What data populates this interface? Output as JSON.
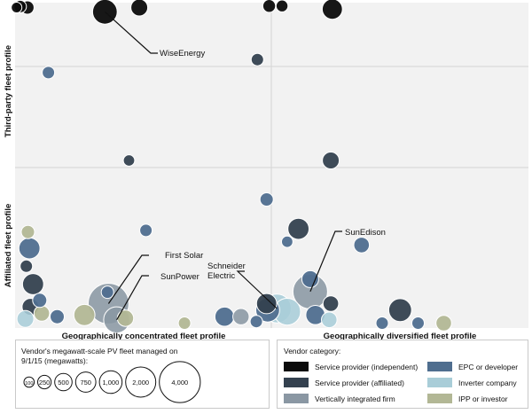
{
  "chart_data": {
    "type": "bubble",
    "xlabel_left": "Geographically concentrated fleet profile",
    "xlabel_right": "Geographically diversified fleet profile",
    "ylabel_top": "Third-party fleet profile",
    "ylabel_bottom": "Affiliated fleet profile",
    "x_range": [
      0,
      1
    ],
    "y_range": [
      0,
      1
    ],
    "grid": true,
    "categories": [
      {
        "id": "sp_ind",
        "label": "Service provider (independent)",
        "color": "#0b0b0b"
      },
      {
        "id": "epc",
        "label": "EPC or developer",
        "color": "#4f6e8f"
      },
      {
        "id": "sp_aff",
        "label": "Service provider (affiliated)",
        "color": "#34414f"
      },
      {
        "id": "inv",
        "label": "Inverter company",
        "color": "#a9cdd8"
      },
      {
        "id": "vif",
        "label": "Vertically integrated firm",
        "color": "#8a97a3"
      },
      {
        "id": "ipp",
        "label": "IPP or investor",
        "color": "#b2b795"
      }
    ],
    "bubbles": [
      {
        "x": 0.003,
        "y": 0.985,
        "mw": 120,
        "cat": "sp_ind"
      },
      {
        "x": 0.01,
        "y": 0.988,
        "mw": 200,
        "cat": "sp_ind"
      },
      {
        "x": 0.024,
        "y": 0.985,
        "mw": 250,
        "cat": "sp_ind"
      },
      {
        "x": 0.175,
        "y": 0.972,
        "mw": 1300,
        "cat": "sp_ind"
      },
      {
        "x": 0.242,
        "y": 0.985,
        "mw": 500,
        "cat": "sp_ind"
      },
      {
        "x": 0.495,
        "y": 0.99,
        "mw": 220,
        "cat": "sp_ind"
      },
      {
        "x": 0.52,
        "y": 0.99,
        "mw": 180,
        "cat": "sp_ind"
      },
      {
        "x": 0.618,
        "y": 0.98,
        "mw": 800,
        "cat": "sp_ind"
      },
      {
        "x": 0.472,
        "y": 0.825,
        "mw": 200,
        "cat": "sp_aff"
      },
      {
        "x": 0.065,
        "y": 0.785,
        "mw": 200,
        "cat": "epc"
      },
      {
        "x": 0.222,
        "y": 0.515,
        "mw": 150,
        "cat": "sp_aff"
      },
      {
        "x": 0.615,
        "y": 0.515,
        "mw": 500,
        "cat": "sp_aff"
      },
      {
        "x": 0.49,
        "y": 0.395,
        "mw": 250,
        "cat": "epc"
      },
      {
        "x": 0.552,
        "y": 0.305,
        "mw": 900,
        "cat": "sp_aff"
      },
      {
        "x": 0.53,
        "y": 0.265,
        "mw": 150,
        "cat": "epc"
      },
      {
        "x": 0.255,
        "y": 0.3,
        "mw": 200,
        "cat": "epc"
      },
      {
        "x": 0.675,
        "y": 0.255,
        "mw": 400,
        "cat": "epc"
      },
      {
        "x": 0.025,
        "y": 0.295,
        "mw": 250,
        "cat": "ipp"
      },
      {
        "x": 0.028,
        "y": 0.245,
        "mw": 900,
        "cat": "epc"
      },
      {
        "x": 0.022,
        "y": 0.19,
        "mw": 200,
        "cat": "sp_aff"
      },
      {
        "x": 0.035,
        "y": 0.135,
        "mw": 900,
        "cat": "sp_aff"
      },
      {
        "x": 0.048,
        "y": 0.085,
        "mw": 300,
        "cat": "epc"
      },
      {
        "x": 0.03,
        "y": 0.065,
        "mw": 500,
        "cat": "sp_aff"
      },
      {
        "x": 0.052,
        "y": 0.045,
        "mw": 400,
        "cat": "ipp"
      },
      {
        "x": 0.02,
        "y": 0.028,
        "mw": 500,
        "cat": "inv"
      },
      {
        "x": 0.082,
        "y": 0.035,
        "mw": 300,
        "cat": "epc"
      },
      {
        "x": 0.135,
        "y": 0.04,
        "mw": 900,
        "cat": "ipp"
      },
      {
        "x": 0.182,
        "y": 0.075,
        "mw": 4200,
        "cat": "vif"
      },
      {
        "x": 0.18,
        "y": 0.11,
        "mw": 200,
        "cat": "epc"
      },
      {
        "x": 0.198,
        "y": 0.025,
        "mw": 1500,
        "cat": "vif"
      },
      {
        "x": 0.215,
        "y": 0.03,
        "mw": 450,
        "cat": "ipp"
      },
      {
        "x": 0.33,
        "y": 0.015,
        "mw": 200,
        "cat": "ipp"
      },
      {
        "x": 0.408,
        "y": 0.035,
        "mw": 700,
        "cat": "epc"
      },
      {
        "x": 0.44,
        "y": 0.035,
        "mw": 450,
        "cat": "vif"
      },
      {
        "x": 0.47,
        "y": 0.02,
        "mw": 200,
        "cat": "epc"
      },
      {
        "x": 0.49,
        "y": 0.075,
        "mw": 800,
        "cat": "sp_aff"
      },
      {
        "x": 0.492,
        "y": 0.055,
        "mw": 1200,
        "cat": "epc"
      },
      {
        "x": 0.51,
        "y": 0.06,
        "mw": 1900,
        "cat": "inv"
      },
      {
        "x": 0.53,
        "y": 0.05,
        "mw": 1600,
        "cat": "inv"
      },
      {
        "x": 0.575,
        "y": 0.112,
        "mw": 2900,
        "cat": "vif"
      },
      {
        "x": 0.575,
        "y": 0.15,
        "mw": 500,
        "cat": "epc"
      },
      {
        "x": 0.585,
        "y": 0.04,
        "mw": 700,
        "cat": "epc"
      },
      {
        "x": 0.612,
        "y": 0.025,
        "mw": 400,
        "cat": "inv"
      },
      {
        "x": 0.615,
        "y": 0.075,
        "mw": 400,
        "cat": "sp_aff"
      },
      {
        "x": 0.715,
        "y": 0.015,
        "mw": 200,
        "cat": "epc"
      },
      {
        "x": 0.75,
        "y": 0.055,
        "mw": 1100,
        "cat": "sp_aff"
      },
      {
        "x": 0.785,
        "y": 0.015,
        "mw": 200,
        "cat": "epc"
      },
      {
        "x": 0.835,
        "y": 0.015,
        "mw": 400,
        "cat": "ipp"
      }
    ],
    "annotations": [
      {
        "label": "WiseEnergy",
        "x": 0.175,
        "y": 0.972
      },
      {
        "label": "First Solar",
        "x": 0.182,
        "y": 0.075
      },
      {
        "label": "SunPower",
        "x": 0.198,
        "y": 0.025
      },
      {
        "label": "Schneider Electric",
        "x": 0.51,
        "y": 0.06
      },
      {
        "label": "SunEdison",
        "x": 0.575,
        "y": 0.112
      }
    ],
    "size_legend": {
      "title": "Vendor's megawatt-scale PV fleet managed on 9/1/15 (megawatts):",
      "values": [
        100,
        250,
        500,
        750,
        1000,
        2000,
        4000
      ],
      "labels": [
        "100",
        "250",
        "500",
        "750",
        "1,000",
        "2,000",
        "4,000"
      ]
    },
    "category_legend_title": "Vendor category:"
  }
}
